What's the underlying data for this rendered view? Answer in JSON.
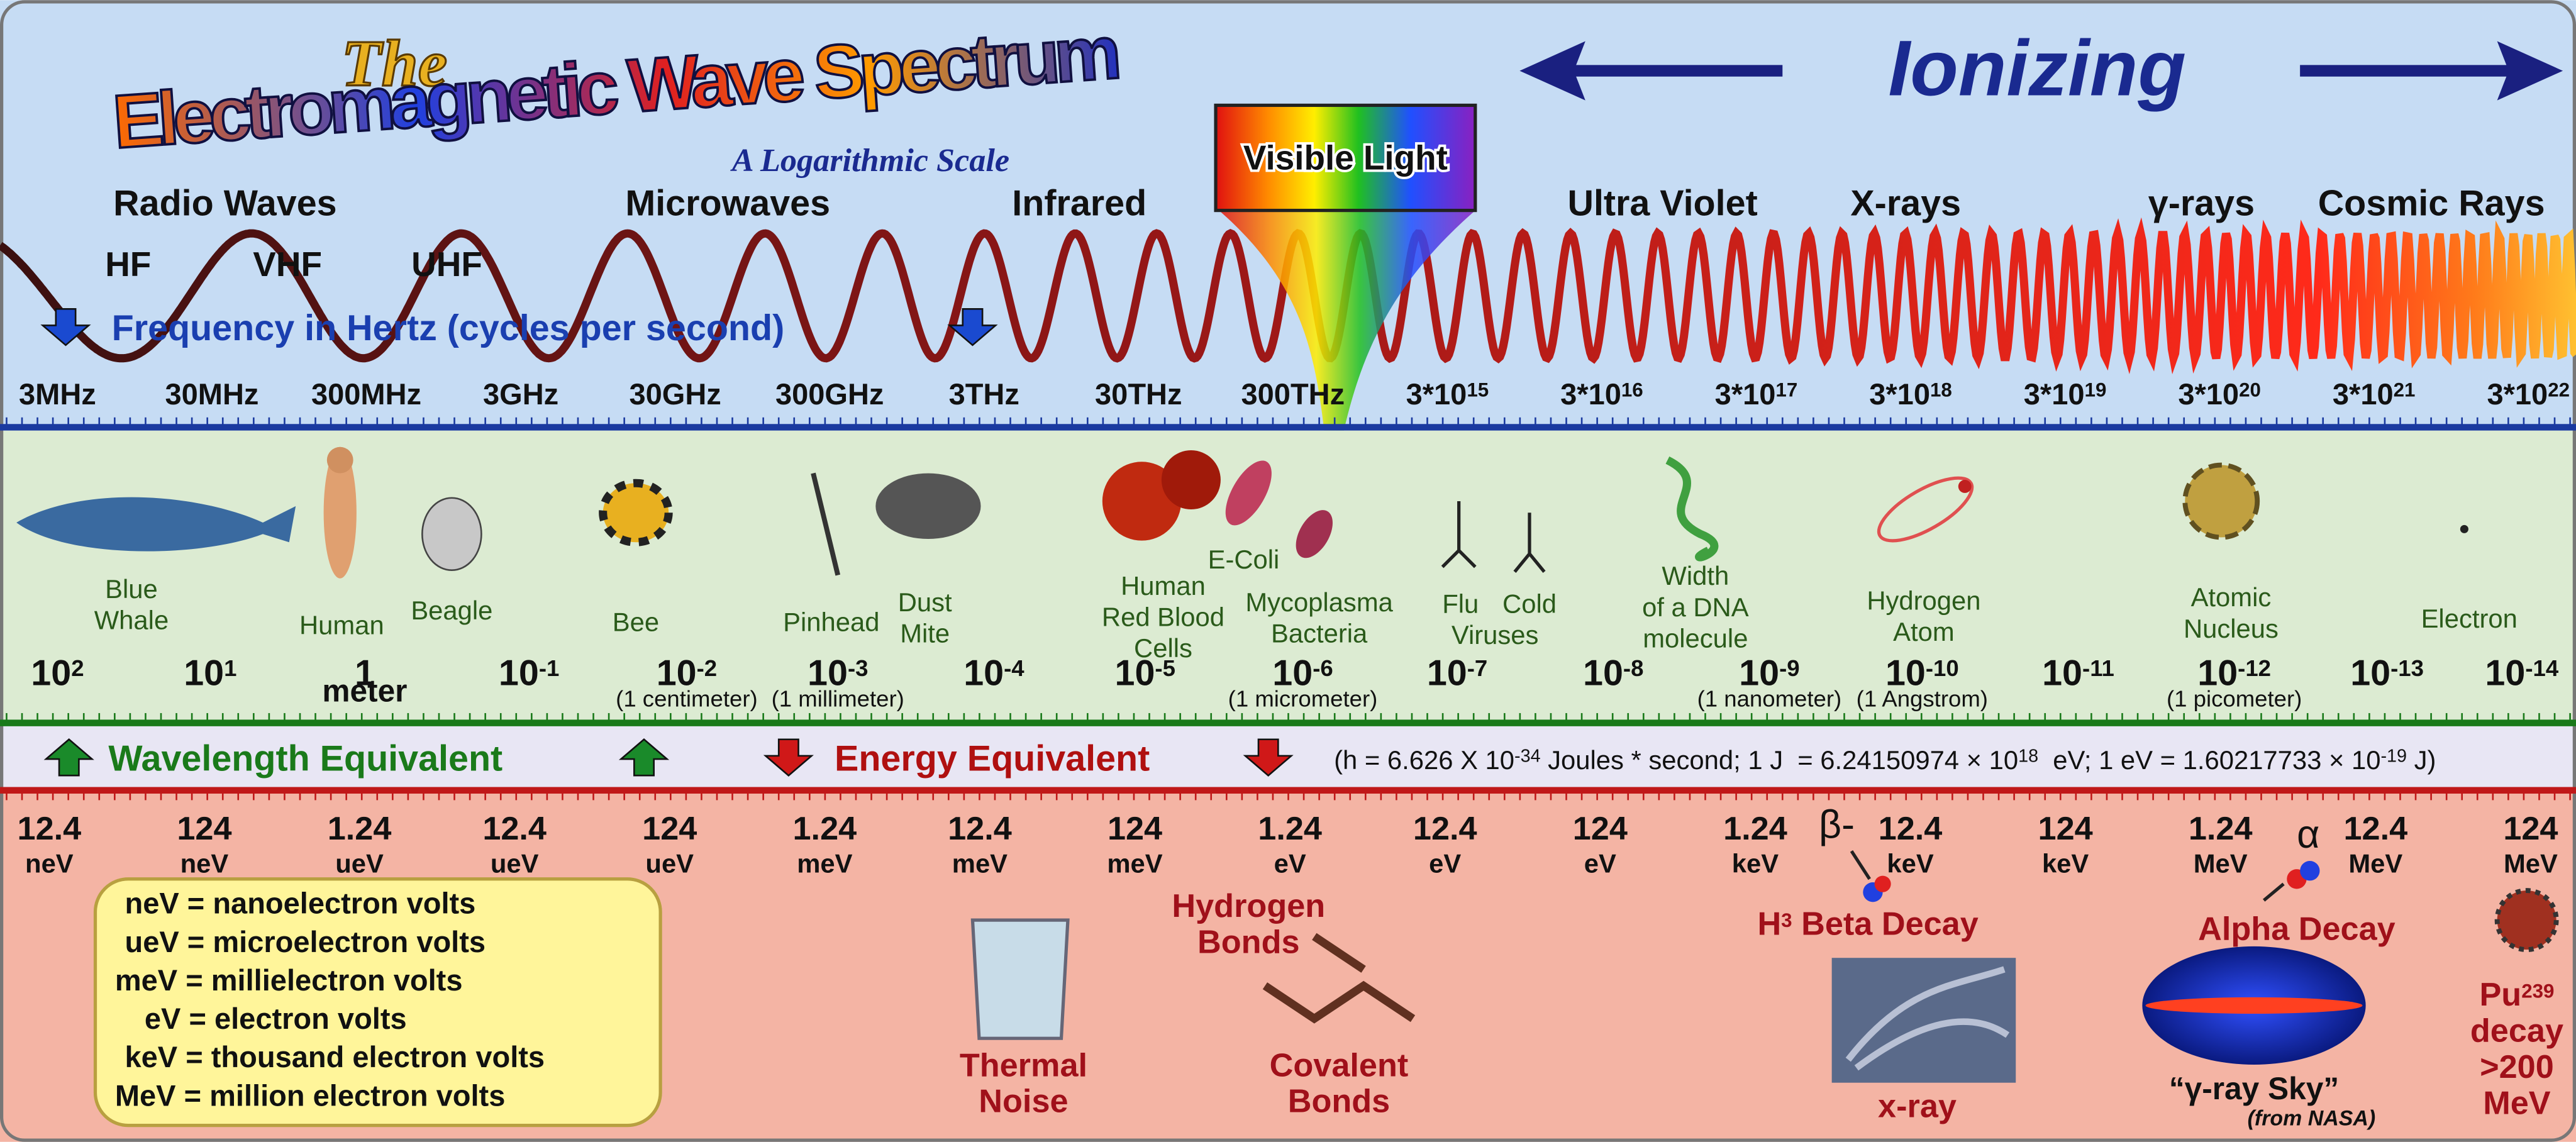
{
  "title": {
    "the": "The",
    "main": "Electromagnetic Wave Spectrum",
    "subtitle": "A Logarithmic Scale"
  },
  "ionizing": "Ionizing",
  "visible_light": "Visible Light",
  "bands": [
    "Radio Waves",
    "Microwaves",
    "Infrared",
    "Ultra Violet",
    "X-rays",
    "γ-rays",
    "Cosmic Rays"
  ],
  "radio_sub": [
    "HF",
    "VHF",
    "UHF"
  ],
  "frequency_axis": {
    "label": "Frequency in Hertz (cycles per second)",
    "ticks": [
      "3MHz",
      "30MHz",
      "300MHz",
      "3GHz",
      "30GHz",
      "300GHz",
      "3THz",
      "30THz",
      "300THz",
      [
        "3*10",
        {
          "sup": "15"
        }
      ],
      [
        "3*10",
        {
          "sup": "16"
        }
      ],
      [
        "3*10",
        {
          "sup": "17"
        }
      ],
      [
        "3*10",
        {
          "sup": "18"
        }
      ],
      [
        "3*10",
        {
          "sup": "19"
        }
      ],
      [
        "3*10",
        {
          "sup": "20"
        }
      ],
      [
        "3*10",
        {
          "sup": "21"
        }
      ],
      [
        "3*10",
        {
          "sup": "22"
        }
      ]
    ]
  },
  "objects": [
    [
      "Blue",
      "Whale"
    ],
    [
      "Human"
    ],
    [
      "Beagle"
    ],
    [
      "Bee"
    ],
    [
      "Pinhead"
    ],
    [
      "Dust",
      "Mite"
    ],
    [
      "Human",
      "Red Blood",
      "Cells"
    ],
    [
      "E-Coli"
    ],
    [
      "Mycoplasma",
      "Bacteria"
    ],
    [
      "Flu"
    ],
    [
      "Cold"
    ],
    [
      "Viruses"
    ],
    [
      "Width",
      "of a DNA",
      "molecule"
    ],
    [
      "Hydrogen",
      "Atom"
    ],
    [
      "Atomic",
      "Nucleus"
    ],
    [
      "Electron"
    ]
  ],
  "wavelength_axis": {
    "label": "Wavelength Equivalent",
    "ticks": [
      {
        "value": [
          "10",
          {
            "sup": "2"
          }
        ]
      },
      {
        "value": [
          "10",
          {
            "sup": "1"
          }
        ]
      },
      {
        "value": [
          "1"
        ],
        "note": "meter"
      },
      {
        "value": [
          "10",
          {
            "sup": "-1"
          }
        ]
      },
      {
        "value": [
          "10",
          {
            "sup": "-2"
          }
        ],
        "note": "(1 centimeter)"
      },
      {
        "value": [
          "10",
          {
            "sup": "-3"
          }
        ],
        "note": "(1 millimeter)"
      },
      {
        "value": [
          "10",
          {
            "sup": "-4"
          }
        ]
      },
      {
        "value": [
          "10",
          {
            "sup": "-5"
          }
        ]
      },
      {
        "value": [
          "10",
          {
            "sup": "-6"
          }
        ],
        "note": "(1 micrometer)"
      },
      {
        "value": [
          "10",
          {
            "sup": "-7"
          }
        ]
      },
      {
        "value": [
          "10",
          {
            "sup": "-8"
          }
        ]
      },
      {
        "value": [
          "10",
          {
            "sup": "-9"
          }
        ],
        "note": "(1 nanometer)"
      },
      {
        "value": [
          "10",
          {
            "sup": "-10"
          }
        ],
        "note": "(1 Angstrom)"
      },
      {
        "value": [
          "10",
          {
            "sup": "-11"
          }
        ]
      },
      {
        "value": [
          "10",
          {
            "sup": "-12"
          }
        ],
        "note": "(1 picometer)"
      },
      {
        "value": [
          "10",
          {
            "sup": "-13"
          }
        ]
      },
      {
        "value": [
          "10",
          {
            "sup": "-14"
          }
        ]
      }
    ]
  },
  "energy_axis": {
    "label": "Energy Equivalent",
    "formula": [
      "(h = 6.626 X 10",
      {
        "sup": "-34"
      },
      " Joules * second; 1 J  = 6.24150974 × 10",
      {
        "sup": "18"
      },
      "  eV; 1 eV = 1.60217733 × 10",
      {
        "sup": "-19"
      },
      " J)"
    ],
    "ticks": [
      {
        "value": "12.4",
        "unit": "neV"
      },
      {
        "value": "124",
        "unit": "neV"
      },
      {
        "value": "1.24",
        "unit": "ueV"
      },
      {
        "value": "12.4",
        "unit": "ueV"
      },
      {
        "value": "124",
        "unit": "ueV"
      },
      {
        "value": "1.24",
        "unit": "meV"
      },
      {
        "value": "12.4",
        "unit": "meV"
      },
      {
        "value": "124",
        "unit": "meV"
      },
      {
        "value": "1.24",
        "unit": "eV"
      },
      {
        "value": "12.4",
        "unit": "eV"
      },
      {
        "value": "124",
        "unit": "eV"
      },
      {
        "value": "1.24",
        "unit": "keV"
      },
      {
        "value": "12.4",
        "unit": "keV"
      },
      {
        "value": "124",
        "unit": "keV"
      },
      {
        "value": "1.24",
        "unit": "MeV"
      },
      {
        "value": "12.4",
        "unit": "MeV"
      },
      {
        "value": "124",
        "unit": "MeV"
      }
    ]
  },
  "legend": [
    "neV = nanoelectron volts",
    "ueV = microelectron volts",
    "meV = millielectron volts",
    "eV = electron volts",
    "keV = thousand electron volts",
    "MeV = million electron volts"
  ],
  "examples": [
    [
      [
        "Thermal"
      ],
      [
        "Noise"
      ]
    ],
    [
      [
        "Hydrogen"
      ],
      [
        "Bonds"
      ]
    ],
    [
      [
        "Covalent"
      ],
      [
        "Bonds"
      ]
    ],
    [
      [
        "H",
        {
          "sup": "3"
        },
        " Beta Decay"
      ]
    ],
    [
      [
        "x-ray"
      ]
    ],
    [
      [
        "Alpha Decay"
      ]
    ],
    [
      [
        "“γ-ray Sky”"
      ]
    ],
    [
      [
        "(from NASA)"
      ]
    ],
    [
      [
        "Pu",
        {
          "sup": "239"
        }
      ],
      [
        "decay"
      ],
      [
        ">200"
      ],
      [
        "MeV"
      ]
    ],
    [
      [
        "β-"
      ]
    ],
    [
      [
        "α"
      ]
    ]
  ]
}
